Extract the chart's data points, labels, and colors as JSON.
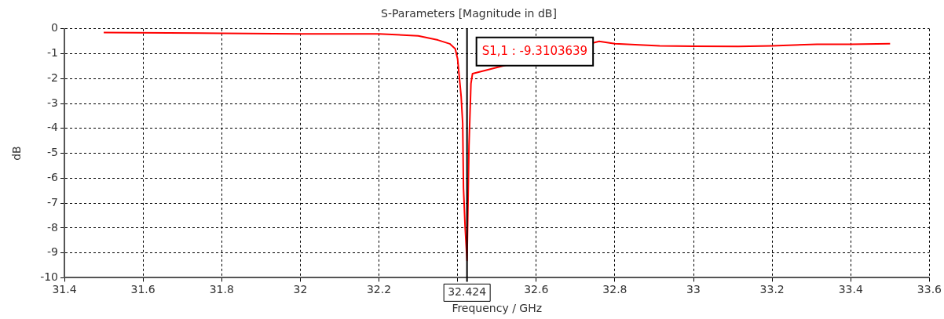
{
  "chart_data": {
    "type": "line",
    "title": "S-Parameters [Magnitude in dB]",
    "xlabel": "Frequency / GHz",
    "ylabel": "dB",
    "x": [
      31.5,
      31.8,
      32.0,
      32.2,
      32.3,
      32.35,
      32.38,
      32.394,
      32.4,
      32.409,
      32.413,
      32.415,
      32.419,
      32.424,
      32.426,
      32.429,
      32.434,
      32.438,
      32.76,
      32.8,
      32.914,
      33.0,
      33.114,
      33.2,
      33.314,
      33.4,
      33.5
    ],
    "series": [
      {
        "color": "#ff0000",
        "values": [
          -0.15,
          -0.18,
          -0.2,
          -0.2,
          -0.28,
          -0.45,
          -0.6,
          -0.8,
          -1.2,
          -2.7,
          -3.8,
          -6.4,
          -7.9,
          -9.31,
          -7.5,
          -4.7,
          -2.2,
          -1.8,
          -0.5,
          -0.6,
          -0.68,
          -0.7,
          -0.71,
          -0.68,
          -0.62,
          -0.62,
          -0.6
        ]
      }
    ],
    "xlim": [
      31.4,
      33.6
    ],
    "xticks": [
      31.4,
      31.6,
      31.8,
      32,
      32.2,
      {
        "value": 32.4,
        "label": null
      },
      32.6,
      32.8,
      33,
      33.2,
      33.4,
      33.6
    ],
    "ylim": [
      -10,
      0
    ],
    "yticks": [
      -10,
      -9,
      -8,
      -7,
      -6,
      -5,
      -4,
      -3,
      -2,
      -1,
      0
    ],
    "grid": true,
    "legend": false,
    "marker": "none",
    "line_style": "solid",
    "ref_lines": [
      {
        "axis": "x",
        "value": 32.424,
        "label": "32.424",
        "color": "#000000"
      }
    ],
    "annotations": [
      "S1,1 : -9.3103639"
    ]
  }
}
